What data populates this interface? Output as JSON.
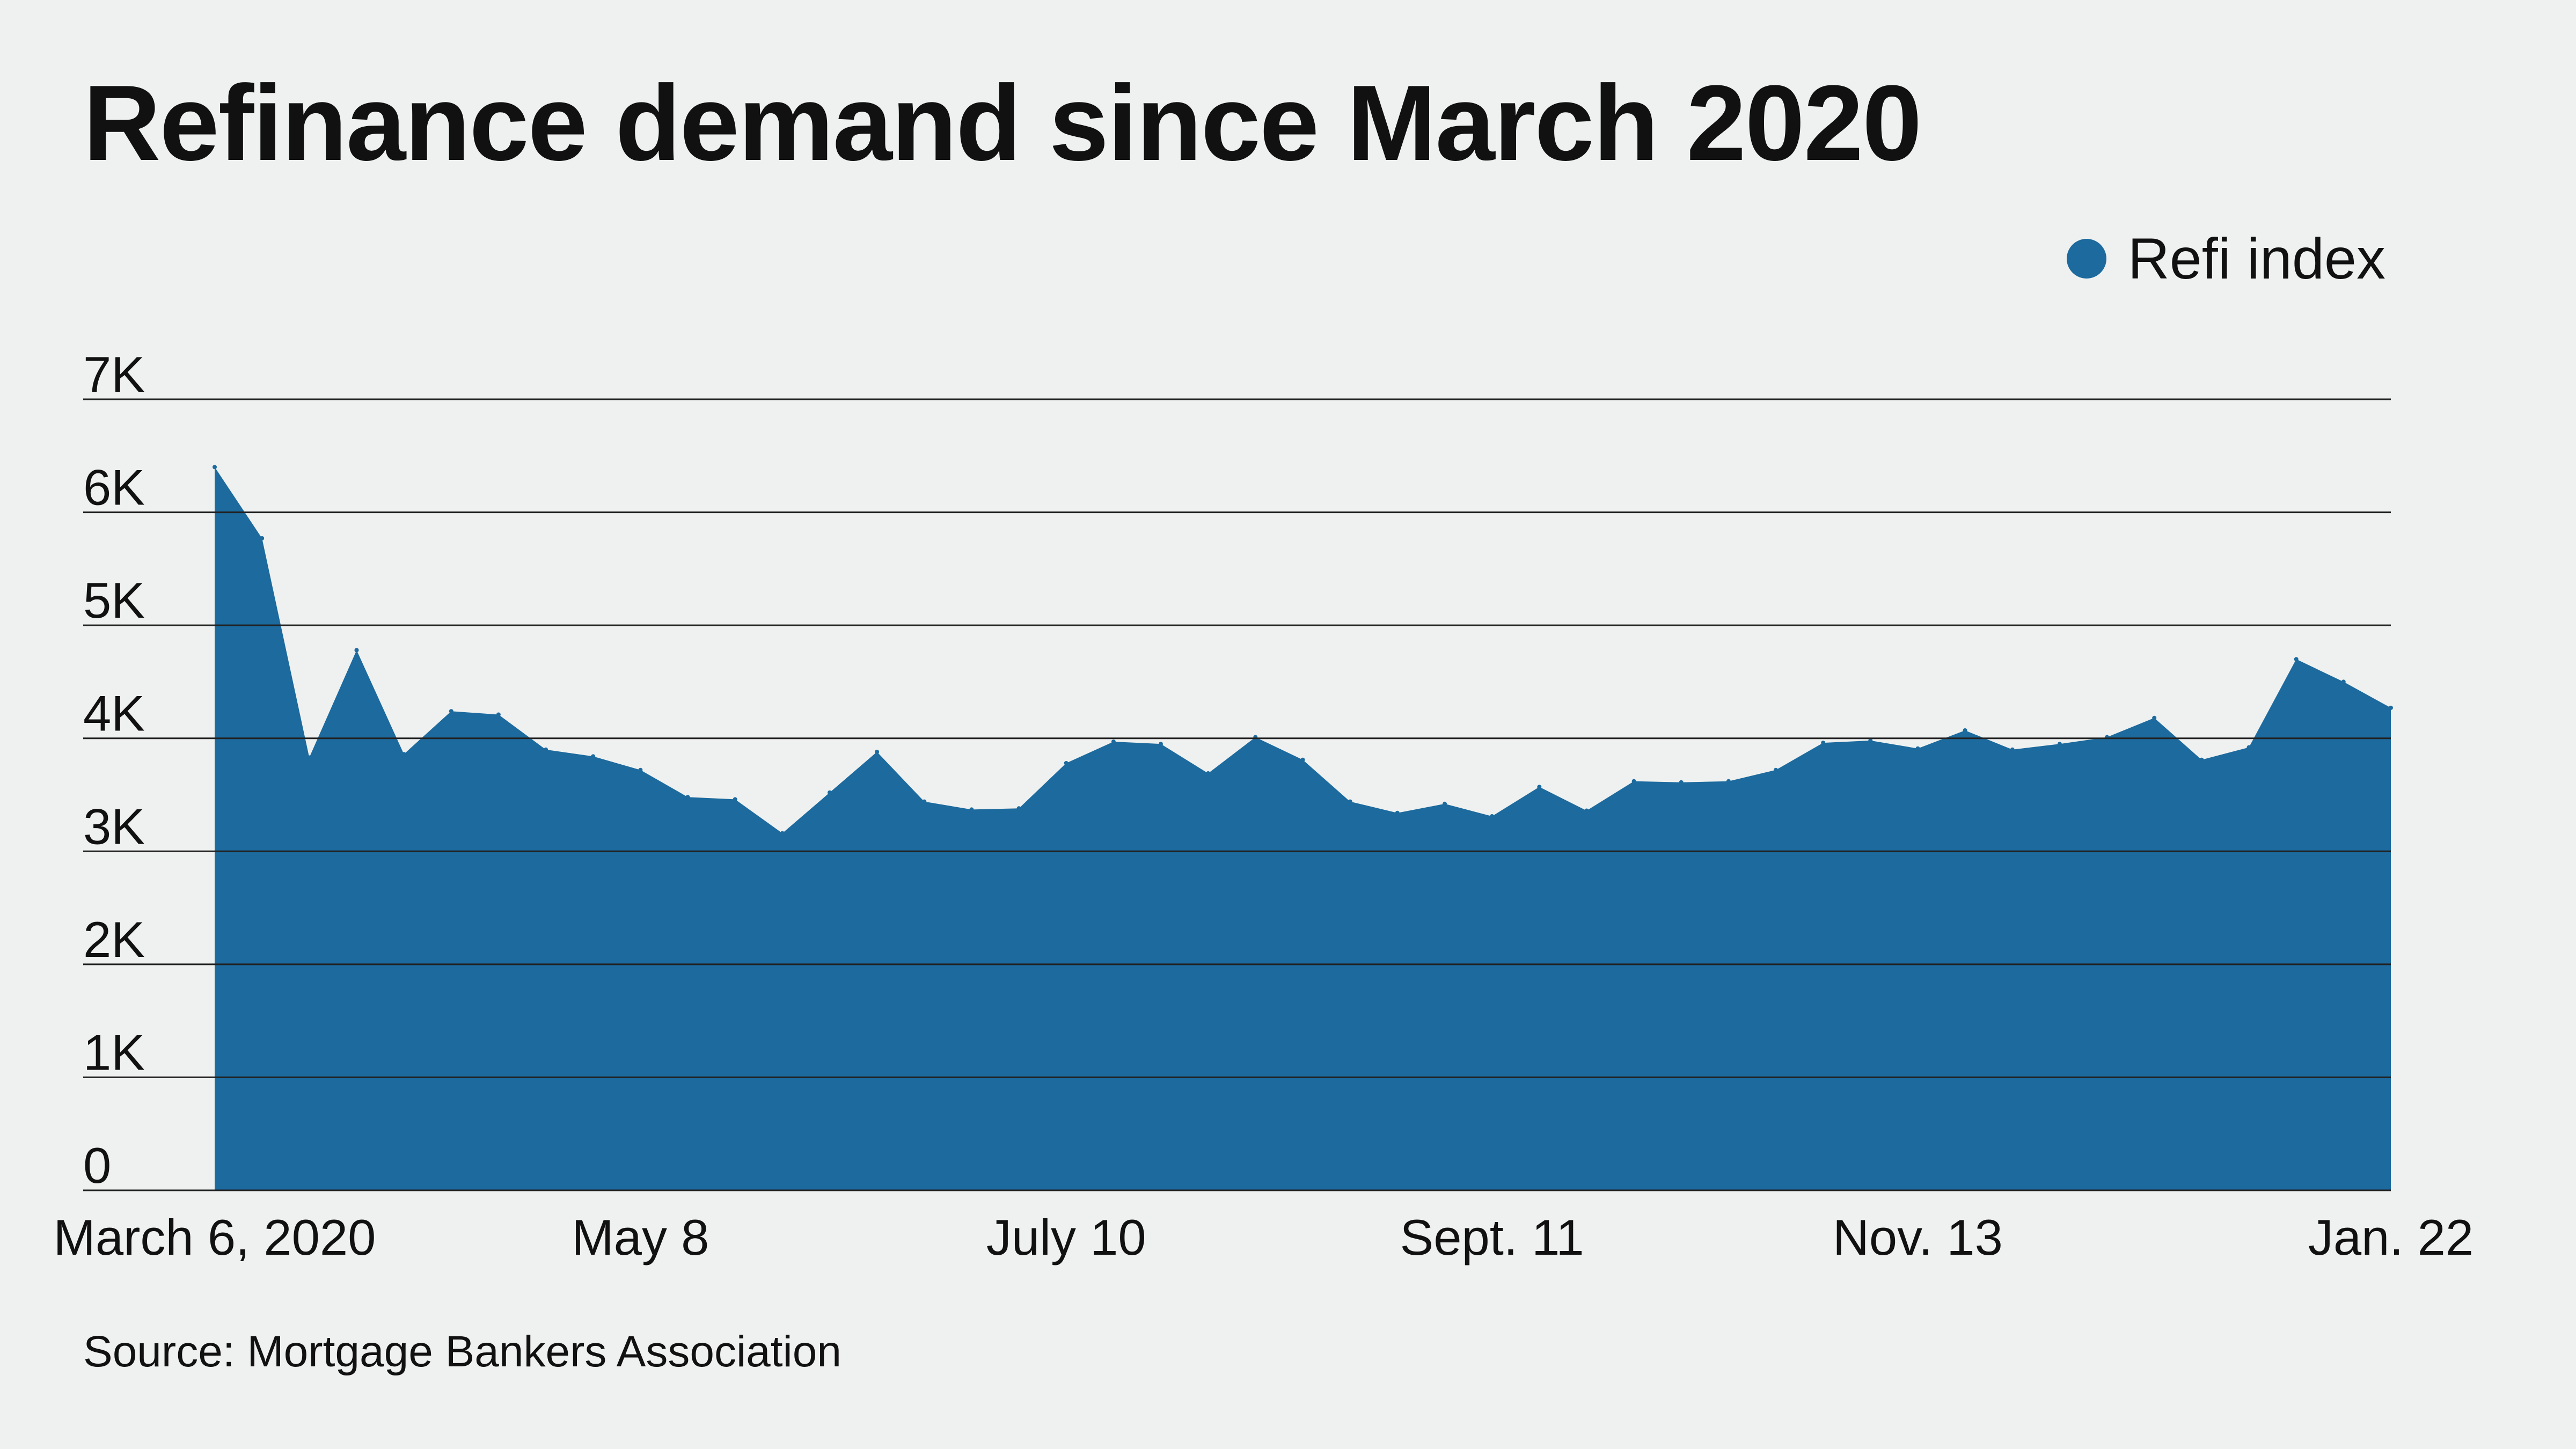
{
  "title": "Refinance demand since March 2020",
  "legend": {
    "label": "Refi index",
    "color": "#1c6a9e"
  },
  "source": "Source: Mortgage Bankers Association",
  "chart_data": {
    "type": "area",
    "title": "Refinance demand since March 2020",
    "xlabel": "",
    "ylabel": "",
    "ylim": [
      0,
      7000
    ],
    "yticks": [
      {
        "value": 0,
        "label": "0"
      },
      {
        "value": 1000,
        "label": "1K"
      },
      {
        "value": 2000,
        "label": "2K"
      },
      {
        "value": 3000,
        "label": "3K"
      },
      {
        "value": 4000,
        "label": "4K"
      },
      {
        "value": 5000,
        "label": "5K"
      },
      {
        "value": 6000,
        "label": "6K"
      },
      {
        "value": 7000,
        "label": "7K"
      }
    ],
    "xticks": [
      {
        "index": 0,
        "label": "March 6, 2020"
      },
      {
        "index": 9,
        "label": "May 8"
      },
      {
        "index": 18,
        "label": "July 10"
      },
      {
        "index": 27,
        "label": "Sept. 11"
      },
      {
        "index": 36,
        "label": "Nov. 13"
      },
      {
        "index": 46,
        "label": "Jan. 22"
      }
    ],
    "grid": true,
    "legend_position": "top-right",
    "series": [
      {
        "name": "Refi index",
        "color": "#1c6a9e",
        "values": [
          6400,
          5770,
          3830,
          4780,
          3860,
          4240,
          4210,
          3900,
          3840,
          3720,
          3480,
          3460,
          3160,
          3520,
          3880,
          3440,
          3370,
          3380,
          3780,
          3970,
          3950,
          3690,
          4010,
          3810,
          3440,
          3340,
          3420,
          3310,
          3570,
          3360,
          3620,
          3610,
          3620,
          3720,
          3960,
          3980,
          3910,
          4070,
          3900,
          3950,
          4010,
          4180,
          3810,
          3920,
          4700,
          4500,
          4270
        ]
      }
    ]
  }
}
